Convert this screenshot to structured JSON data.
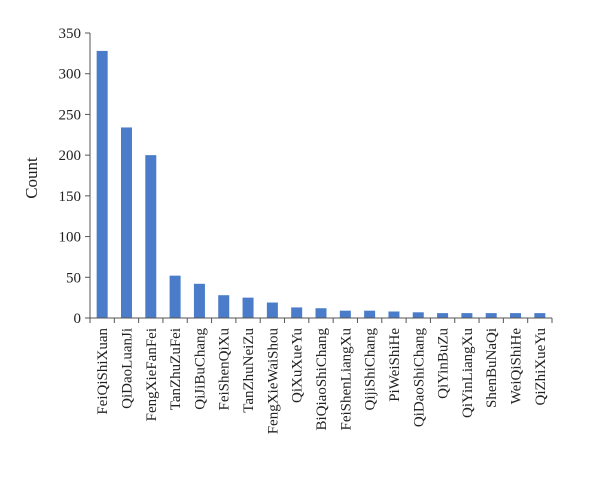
{
  "chart_data": {
    "type": "bar",
    "title": "",
    "xlabel": "",
    "ylabel": "Count",
    "ylim": [
      0,
      350
    ],
    "yticks": [
      0,
      50,
      100,
      150,
      200,
      250,
      300,
      350
    ],
    "grid": false,
    "bar_color": "#4a7cc9",
    "categories": [
      "FeiQiShiXuan",
      "QiDaoLuanJi",
      "FengXieFanFei",
      "TanZhuZuFei",
      "QiJiBuChang",
      "FeiShenQiXu",
      "TanZhuNeiZu",
      "FengXieWaiShou",
      "QiXuXueYu",
      "BiQiaoShiChang",
      "FeiShenLiangXu",
      "QijiShiChang",
      "PiWeiShiHe",
      "QiDaoShiChang",
      "QiYinBuZu",
      "QiYinLiangXu",
      "ShenBuNaQi",
      "WeiQiShiHe",
      "QiZhiXueYu"
    ],
    "values": [
      328,
      234,
      200,
      52,
      42,
      28,
      25,
      19,
      13,
      12,
      9,
      9,
      8,
      7,
      6,
      6,
      6,
      6,
      6
    ]
  }
}
